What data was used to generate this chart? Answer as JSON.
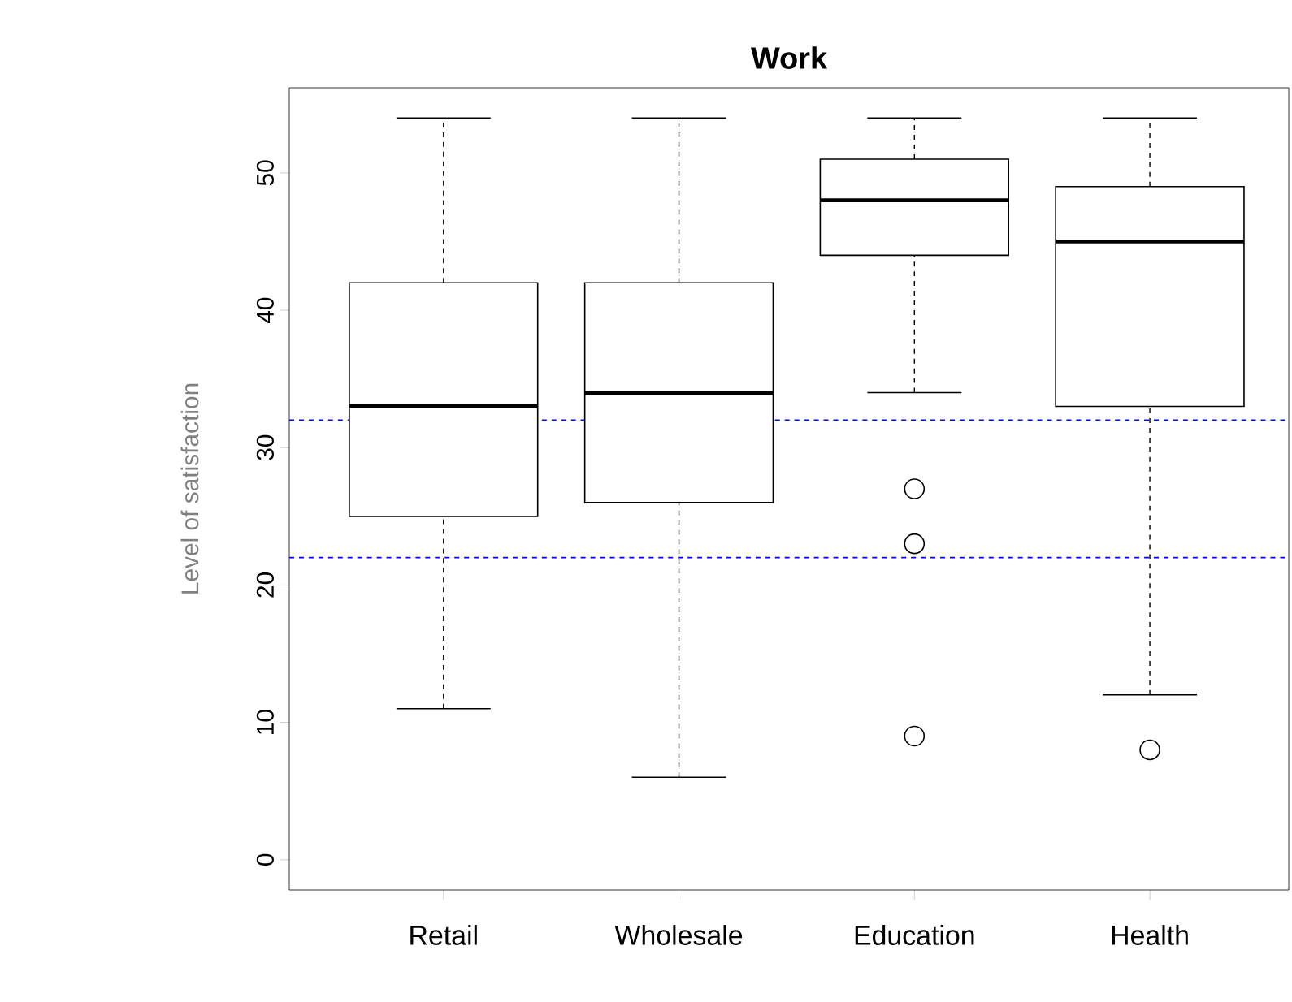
{
  "chart_data": {
    "type": "box",
    "title": "Work",
    "ylabel": "Level of satisfaction",
    "categories": [
      "Retail",
      "Wholesale",
      "Education",
      "Health"
    ],
    "boxes": [
      {
        "low": 11,
        "q1": 25,
        "median": 33,
        "q3": 42,
        "high": 54
      },
      {
        "low": 6,
        "q1": 26,
        "median": 34,
        "q3": 42,
        "high": 54
      },
      {
        "low": 34,
        "q1": 44,
        "median": 48,
        "q3": 51,
        "high": 54,
        "outliers": [
          27,
          23,
          9
        ]
      },
      {
        "low": 12,
        "q1": 33,
        "median": 45,
        "q3": 49,
        "high": 54,
        "outliers": [
          8
        ]
      }
    ],
    "ylim": [
      -2.2,
      56.2
    ],
    "yticks": [
      0,
      10,
      20,
      30,
      40,
      50
    ],
    "ref_lines": [
      {
        "axis": "y",
        "value": 32,
        "color": "#0000ff",
        "line_style": "dashed"
      },
      {
        "axis": "y",
        "value": 22,
        "color": "#0000ff",
        "line_style": "dashed"
      }
    ],
    "grid": false
  }
}
